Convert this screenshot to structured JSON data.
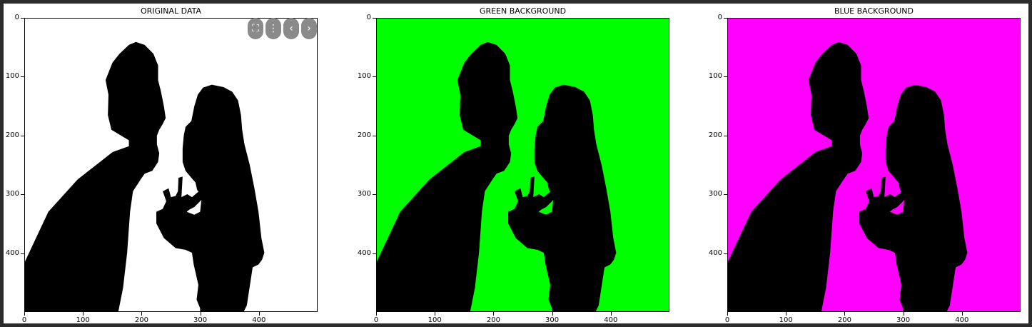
{
  "panels": [
    {
      "title": "ORIGINAL DATA",
      "background": "#ffffff"
    },
    {
      "title": "GREEN BACKGROUND",
      "background": "#00ff00"
    },
    {
      "title": "BLUE BACKGROUND",
      "background": "#ff00ff"
    }
  ],
  "axes": {
    "y_ticks": [
      "0",
      "100",
      "200",
      "300",
      "400"
    ],
    "x_ticks": [
      "0",
      "100",
      "200",
      "300",
      "400"
    ]
  },
  "silhouette_color": "#000000",
  "toolbar": {
    "buttons": [
      {
        "icon": "fullscreen-icon",
        "glyph": "⛶"
      },
      {
        "icon": "more-vertical-icon",
        "glyph": "⋮"
      },
      {
        "icon": "chevron-left-icon",
        "glyph": "‹"
      },
      {
        "icon": "chevron-right-icon",
        "glyph": "›"
      }
    ]
  }
}
